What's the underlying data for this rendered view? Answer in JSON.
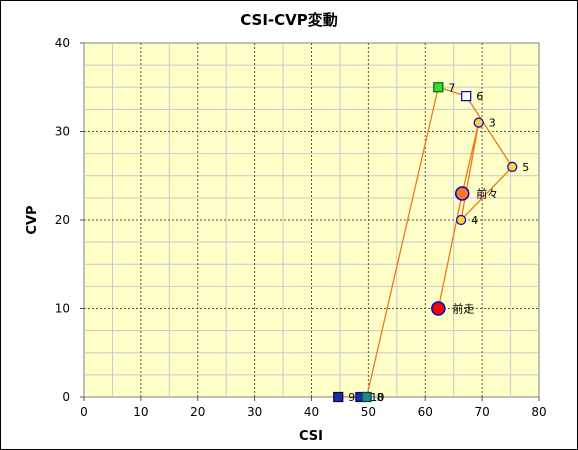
{
  "chart_data": {
    "type": "scatter",
    "title": "CSI-CVP変動",
    "xlabel": "CSI",
    "ylabel": "CVP",
    "xlim": [
      0,
      80
    ],
    "ylim": [
      0,
      40
    ],
    "xticks": [
      0,
      10,
      20,
      30,
      40,
      50,
      60,
      70,
      80
    ],
    "yticks": [
      0,
      10,
      20,
      30,
      40
    ],
    "grid": true,
    "plot_background": "#ffffc8",
    "line_color": "#f07818",
    "points": [
      {
        "label": "前走",
        "x": 62.3,
        "y": 10,
        "shape": "circle-large",
        "fill": "#ff0000",
        "stroke": "#0000cc"
      },
      {
        "label": "前々",
        "x": 66.5,
        "y": 23,
        "shape": "circle-large",
        "fill": "#ff7a1f",
        "stroke": "#0000cc"
      },
      {
        "label": "3",
        "x": 69.4,
        "y": 31,
        "shape": "circle",
        "fill": "#ffd23a",
        "stroke": "#0000cc"
      },
      {
        "label": "4",
        "x": 66.3,
        "y": 20,
        "shape": "circle",
        "fill": "#ffd23a",
        "stroke": "#0000cc"
      },
      {
        "label": "5",
        "x": 75.3,
        "y": 26,
        "shape": "circle",
        "fill": "#ffd23a",
        "stroke": "#0000cc"
      },
      {
        "label": "6",
        "x": 67.2,
        "y": 34,
        "shape": "square",
        "fill": "#ffffff",
        "stroke": "#0000cc"
      },
      {
        "label": "7",
        "x": 62.3,
        "y": 35,
        "shape": "square",
        "fill": "#33dd33",
        "stroke": "#006600"
      },
      {
        "label": "8",
        "x": 49.7,
        "y": 0,
        "shape": "square",
        "fill": "#1a8a8a",
        "stroke": "#004444"
      },
      {
        "label": "9",
        "x": 44.7,
        "y": 0,
        "shape": "square",
        "fill": "#1b2fa5",
        "stroke": "#000055"
      },
      {
        "label": "10",
        "x": 48.6,
        "y": 0,
        "shape": "square",
        "fill": "#1b2fa5",
        "stroke": "#000055"
      }
    ]
  }
}
